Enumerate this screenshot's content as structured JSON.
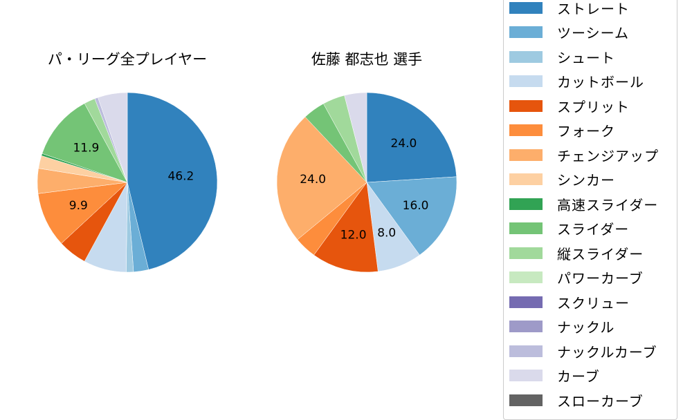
{
  "chart_data": [
    {
      "type": "pie",
      "title": "パ・リーグ全プレイヤー",
      "center": [
        184,
        264
      ],
      "radius": 130,
      "start_angle": 90,
      "direction": "clockwise",
      "slices": [
        {
          "label": "ストレート",
          "value": 46.2,
          "show_label": true
        },
        {
          "label": "ツーシーム",
          "value": 2.7,
          "show_label": false
        },
        {
          "label": "シュート",
          "value": 1.3,
          "show_label": false
        },
        {
          "label": "カットボール",
          "value": 7.7,
          "show_label": false
        },
        {
          "label": "スプリット",
          "value": 5.2,
          "show_label": false
        },
        {
          "label": "フォーク",
          "value": 9.9,
          "show_label": true
        },
        {
          "label": "チェンジアップ",
          "value": 4.5,
          "show_label": false
        },
        {
          "label": "シンカー",
          "value": 2.3,
          "show_label": false
        },
        {
          "label": "高速スライダー",
          "value": 0.4,
          "show_label": false
        },
        {
          "label": "スライダー",
          "value": 11.9,
          "show_label": true
        },
        {
          "label": "縦スライダー",
          "value": 2.0,
          "show_label": false
        },
        {
          "label": "ナックルカーブ",
          "value": 0.6,
          "show_label": false
        },
        {
          "label": "カーブ",
          "value": 5.3,
          "show_label": false
        }
      ]
    },
    {
      "type": "pie",
      "title": "佐藤 都志也  選手",
      "center": [
        530,
        264
      ],
      "radius": 130,
      "start_angle": 90,
      "direction": "clockwise",
      "slices": [
        {
          "label": "ストレート",
          "value": 24.0,
          "show_label": true
        },
        {
          "label": "ツーシーム",
          "value": 16.0,
          "show_label": true
        },
        {
          "label": "カットボール",
          "value": 8.0,
          "show_label": true
        },
        {
          "label": "スプリット",
          "value": 12.0,
          "show_label": true
        },
        {
          "label": "フォーク",
          "value": 4.0,
          "show_label": false
        },
        {
          "label": "チェンジアップ",
          "value": 24.0,
          "show_label": true
        },
        {
          "label": "スライダー",
          "value": 4.0,
          "show_label": false
        },
        {
          "label": "縦スライダー",
          "value": 4.0,
          "show_label": false
        },
        {
          "label": "カーブ",
          "value": 4.0,
          "show_label": false
        }
      ]
    }
  ],
  "legend": {
    "items": [
      {
        "label": "ストレート",
        "color": "#3182bd"
      },
      {
        "label": "ツーシーム",
        "color": "#6baed6"
      },
      {
        "label": "シュート",
        "color": "#9ecae1"
      },
      {
        "label": "カットボール",
        "color": "#c6dbef"
      },
      {
        "label": "スプリット",
        "color": "#e6550d"
      },
      {
        "label": "フォーク",
        "color": "#fd8d3c"
      },
      {
        "label": "チェンジアップ",
        "color": "#fdae6b"
      },
      {
        "label": "シンカー",
        "color": "#fdd0a2"
      },
      {
        "label": "高速スライダー",
        "color": "#31a354"
      },
      {
        "label": "スライダー",
        "color": "#74c476"
      },
      {
        "label": "縦スライダー",
        "color": "#a1d99b"
      },
      {
        "label": "パワーカーブ",
        "color": "#c7e9c0"
      },
      {
        "label": "スクリュー",
        "color": "#756bb1"
      },
      {
        "label": "ナックル",
        "color": "#9e9ac8"
      },
      {
        "label": "ナックルカーブ",
        "color": "#bcbddc"
      },
      {
        "label": "カーブ",
        "color": "#dadaeb"
      },
      {
        "label": "スローカーブ",
        "color": "#636363"
      }
    ]
  }
}
